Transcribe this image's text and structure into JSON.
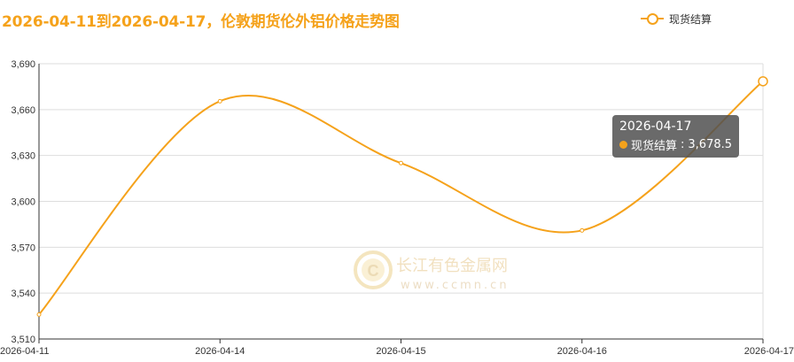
{
  "title": "2026-04-11到2026-04-17，伦敦期货伦外铝价格走势图",
  "legend": {
    "label": "现货结算"
  },
  "tooltip": {
    "date": "2026-04-17",
    "series_label": "现货结算",
    "value_text": "3,678.5"
  },
  "watermark": {
    "name": "长江有色金属网",
    "url": "www.ccmn.cn"
  },
  "colors": {
    "series": "#f5a21b",
    "title": "#f5a21b",
    "grid": "#dddddd",
    "axis": "#333333"
  },
  "chart_data": {
    "type": "line",
    "title": "2026-04-11到2026-04-17，伦敦期货伦外铝价格走势图",
    "categories": [
      "2026-04-11",
      "2026-04-14",
      "2026-04-15",
      "2026-04-16",
      "2026-04-17"
    ],
    "series": [
      {
        "name": "现货结算",
        "values": [
          3526,
          3665.5,
          3625,
          3581,
          3678.5
        ]
      }
    ],
    "y_ticks": [
      "3,510",
      "3,540",
      "3,570",
      "3,600",
      "3,630",
      "3,660",
      "3,690"
    ],
    "ylim": [
      3510,
      3690
    ],
    "smooth": true,
    "grid": true,
    "legend_position": "top-right"
  }
}
